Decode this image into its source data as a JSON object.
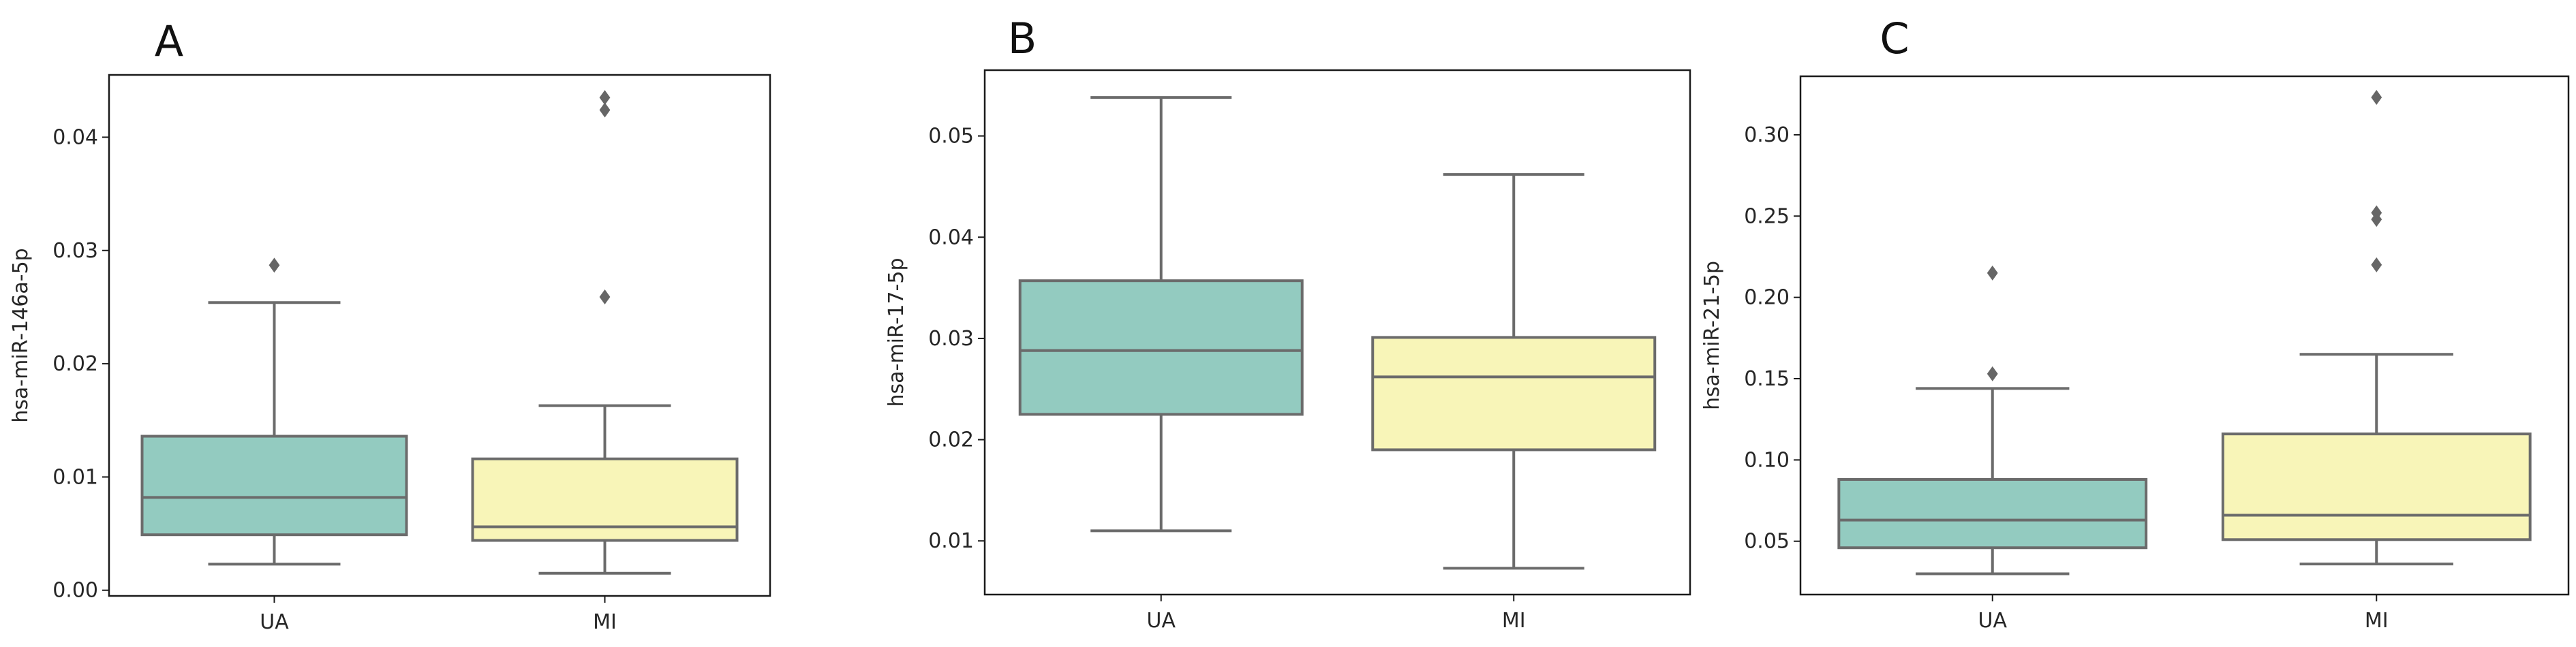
{
  "figure": {
    "box_colors": {
      "UA": "#93cbc0",
      "MI": "#f8f5b8"
    },
    "line_color": "#6b6b6b",
    "flier_color": "#666666"
  },
  "chart_data": [
    {
      "type": "box",
      "panel_label": "A",
      "ylabel": "hsa-miR-146a-5p",
      "categories": [
        "UA",
        "MI"
      ],
      "ylim": [
        -0.0005,
        0.0455
      ],
      "yticks": [
        0.0,
        0.01,
        0.02,
        0.03,
        0.04
      ],
      "ytick_labels": [
        "0.00",
        "0.01",
        "0.02",
        "0.03",
        "0.04"
      ],
      "boxes": [
        {
          "category": "UA",
          "whislo": 0.0023,
          "q1": 0.0049,
          "median": 0.0082,
          "q3": 0.0136,
          "whishi": 0.0254,
          "fliers": [
            0.0287
          ]
        },
        {
          "category": "MI",
          "whislo": 0.0015,
          "q1": 0.0044,
          "median": 0.0056,
          "q3": 0.0116,
          "whishi": 0.0163,
          "fliers": [
            0.0259,
            0.0424,
            0.0435
          ]
        }
      ],
      "grid": false,
      "legend": "none"
    },
    {
      "type": "box",
      "panel_label": "B",
      "ylabel": "hsa-miR-17-5p",
      "categories": [
        "UA",
        "MI"
      ],
      "ylim": [
        0.0047,
        0.0565
      ],
      "yticks": [
        0.01,
        0.02,
        0.03,
        0.04,
        0.05
      ],
      "ytick_labels": [
        "0.01",
        "0.02",
        "0.03",
        "0.04",
        "0.05"
      ],
      "boxes": [
        {
          "category": "UA",
          "whislo": 0.011,
          "q1": 0.0225,
          "median": 0.0288,
          "q3": 0.0357,
          "whishi": 0.0538,
          "fliers": []
        },
        {
          "category": "MI",
          "whislo": 0.0073,
          "q1": 0.019,
          "median": 0.0262,
          "q3": 0.0301,
          "whishi": 0.0462,
          "fliers": []
        }
      ],
      "grid": false,
      "legend": "none"
    },
    {
      "type": "box",
      "panel_label": "C",
      "ylabel": "hsa-miR-21-5p",
      "categories": [
        "UA",
        "MI"
      ],
      "ylim": [
        0.0172,
        0.336
      ],
      "yticks": [
        0.05,
        0.1,
        0.15,
        0.2,
        0.25,
        0.3
      ],
      "ytick_labels": [
        "0.05",
        "0.10",
        "0.15",
        "0.20",
        "0.25",
        "0.30"
      ],
      "boxes": [
        {
          "category": "UA",
          "whislo": 0.03,
          "q1": 0.046,
          "median": 0.063,
          "q3": 0.088,
          "whishi": 0.144,
          "fliers": [
            0.153,
            0.215
          ]
        },
        {
          "category": "MI",
          "whislo": 0.036,
          "q1": 0.051,
          "median": 0.066,
          "q3": 0.116,
          "whishi": 0.165,
          "fliers": [
            0.22,
            0.248,
            0.252,
            0.323
          ]
        }
      ],
      "grid": false,
      "legend": "none"
    }
  ]
}
